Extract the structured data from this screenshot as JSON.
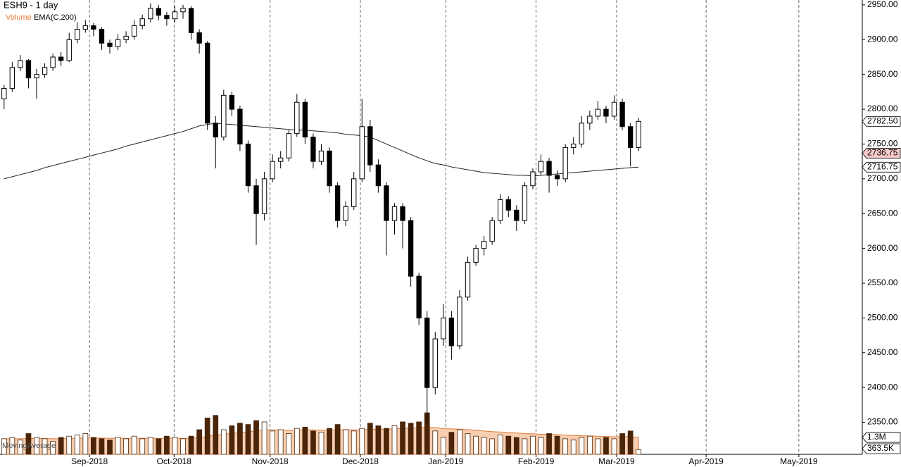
{
  "chart_data": {
    "type": "candlestick",
    "title": "ESH9 - 1 day",
    "legend": [
      "Volume",
      "EMA(C,200)"
    ],
    "legend_colors": [
      "#e07b39",
      "#000000"
    ],
    "footer_label": "MovingAverage",
    "xlim": [
      0,
      106
    ],
    "xticks": [
      {
        "value": 11,
        "label": "Sep-2018"
      },
      {
        "value": 21.4,
        "label": "Oct-2018"
      },
      {
        "value": 33.2,
        "label": "Nov-2018"
      },
      {
        "value": 44.3,
        "label": "Dec-2018"
      },
      {
        "value": 54.8,
        "label": "Jan-2019"
      },
      {
        "value": 65.9,
        "label": "Feb-2019"
      },
      {
        "value": 75.8,
        "label": "Mar-2019"
      },
      {
        "value": 86.8,
        "label": "Apr-2019"
      },
      {
        "value": 98.2,
        "label": "May-2019"
      }
    ],
    "ylim": [
      2304,
      2957
    ],
    "yticks": [
      {
        "value": 2350,
        "label": "2350.00"
      },
      {
        "value": 2400,
        "label": "2400.00"
      },
      {
        "value": 2450,
        "label": "2450.00"
      },
      {
        "value": 2500,
        "label": "2500.00"
      },
      {
        "value": 2550,
        "label": "2550.00"
      },
      {
        "value": 2600,
        "label": "2600.00"
      },
      {
        "value": 2650,
        "label": "2650.00"
      },
      {
        "value": 2700,
        "label": "2700.00"
      },
      {
        "value": 2750,
        "label": "2750.00"
      },
      {
        "value": 2800,
        "label": "2800.00"
      },
      {
        "value": 2850,
        "label": "2850.00"
      },
      {
        "value": 2900,
        "label": "2900.00"
      },
      {
        "value": 2950,
        "label": "2950.00"
      }
    ],
    "price_labels": [
      {
        "value": 2782.5,
        "label": "2782.50"
      },
      {
        "value": 2736.75,
        "label": "2736.75"
      },
      {
        "value": 2716.75,
        "label": "2716.75"
      }
    ],
    "volume_lim": [
      0,
      3800000
    ],
    "volume_labels": [
      {
        "value": 1300000,
        "label": "1.3M"
      },
      {
        "value": 363500,
        "label": "363.5K"
      }
    ],
    "candles": [
      [
        2815,
        2835,
        2800,
        2830
      ],
      [
        2830,
        2868,
        2825,
        2860
      ],
      [
        2860,
        2878,
        2855,
        2870
      ],
      [
        2870,
        2872,
        2830,
        2845
      ],
      [
        2845,
        2858,
        2815,
        2850
      ],
      [
        2850,
        2866,
        2845,
        2860
      ],
      [
        2860,
        2880,
        2855,
        2875
      ],
      [
        2875,
        2882,
        2862,
        2870
      ],
      [
        2870,
        2910,
        2868,
        2900
      ],
      [
        2900,
        2925,
        2895,
        2915
      ],
      [
        2915,
        2928,
        2910,
        2920
      ],
      [
        2920,
        2924,
        2905,
        2915
      ],
      [
        2915,
        2918,
        2885,
        2895
      ],
      [
        2895,
        2900,
        2880,
        2890
      ],
      [
        2890,
        2908,
        2885,
        2900
      ],
      [
        2900,
        2912,
        2895,
        2905
      ],
      [
        2905,
        2928,
        2900,
        2920
      ],
      [
        2920,
        2936,
        2915,
        2930
      ],
      [
        2930,
        2952,
        2925,
        2945
      ],
      [
        2945,
        2950,
        2928,
        2935
      ],
      [
        2935,
        2940,
        2920,
        2930
      ],
      [
        2930,
        2948,
        2925,
        2940
      ],
      [
        2940,
        2950,
        2930,
        2945
      ],
      [
        2945,
        2948,
        2900,
        2910
      ],
      [
        2910,
        2915,
        2880,
        2895
      ],
      [
        2895,
        2898,
        2770,
        2780
      ],
      [
        2780,
        2790,
        2715,
        2760
      ],
      [
        2760,
        2828,
        2755,
        2820
      ],
      [
        2820,
        2825,
        2790,
        2800
      ],
      [
        2800,
        2805,
        2740,
        2750
      ],
      [
        2750,
        2755,
        2680,
        2690
      ],
      [
        2690,
        2700,
        2605,
        2650
      ],
      [
        2650,
        2710,
        2640,
        2700
      ],
      [
        2700,
        2735,
        2695,
        2725
      ],
      [
        2725,
        2740,
        2715,
        2730
      ],
      [
        2730,
        2770,
        2725,
        2765
      ],
      [
        2765,
        2822,
        2760,
        2810
      ],
      [
        2810,
        2815,
        2750,
        2760
      ],
      [
        2760,
        2765,
        2715,
        2725
      ],
      [
        2725,
        2750,
        2720,
        2740
      ],
      [
        2740,
        2745,
        2680,
        2690
      ],
      [
        2690,
        2695,
        2630,
        2640
      ],
      [
        2640,
        2668,
        2632,
        2660
      ],
      [
        2660,
        2710,
        2655,
        2700
      ],
      [
        2700,
        2815,
        2695,
        2775
      ],
      [
        2775,
        2785,
        2710,
        2720
      ],
      [
        2720,
        2728,
        2680,
        2690
      ],
      [
        2690,
        2695,
        2590,
        2640
      ],
      [
        2640,
        2665,
        2620,
        2660
      ],
      [
        2660,
        2665,
        2600,
        2640
      ],
      [
        2640,
        2645,
        2545,
        2560
      ],
      [
        2560,
        2565,
        2490,
        2500
      ],
      [
        2500,
        2510,
        2350,
        2400
      ],
      [
        2400,
        2480,
        2390,
        2470
      ],
      [
        2470,
        2520,
        2460,
        2500
      ],
      [
        2500,
        2510,
        2440,
        2460
      ],
      [
        2460,
        2540,
        2455,
        2530
      ],
      [
        2530,
        2588,
        2525,
        2580
      ],
      [
        2580,
        2605,
        2575,
        2600
      ],
      [
        2600,
        2618,
        2590,
        2610
      ],
      [
        2610,
        2645,
        2605,
        2640
      ],
      [
        2640,
        2678,
        2635,
        2670
      ],
      [
        2670,
        2675,
        2645,
        2655
      ],
      [
        2655,
        2662,
        2625,
        2640
      ],
      [
        2640,
        2695,
        2635,
        2690
      ],
      [
        2690,
        2715,
        2685,
        2710
      ],
      [
        2710,
        2735,
        2705,
        2725
      ],
      [
        2725,
        2730,
        2680,
        2705
      ],
      [
        2705,
        2712,
        2690,
        2700
      ],
      [
        2700,
        2750,
        2695,
        2745
      ],
      [
        2745,
        2760,
        2735,
        2750
      ],
      [
        2750,
        2790,
        2745,
        2780
      ],
      [
        2780,
        2798,
        2770,
        2790
      ],
      [
        2790,
        2812,
        2785,
        2800
      ],
      [
        2800,
        2805,
        2780,
        2790
      ],
      [
        2790,
        2820,
        2785,
        2810
      ],
      [
        2810,
        2815,
        2770,
        2775
      ],
      [
        2775,
        2780,
        2718,
        2745
      ],
      [
        2745,
        2788,
        2740,
        2782.5
      ]
    ],
    "ema": [
      2700,
      2703,
      2706,
      2709,
      2712,
      2716,
      2719,
      2722,
      2725,
      2728,
      2731,
      2734,
      2737,
      2740,
      2743,
      2747,
      2750,
      2753,
      2756,
      2759,
      2762,
      2765,
      2768,
      2772,
      2776,
      2778,
      2780,
      2779,
      2778,
      2777,
      2776,
      2775,
      2774,
      2773,
      2772,
      2771,
      2770,
      2770,
      2769,
      2768,
      2767,
      2766,
      2764,
      2763,
      2762,
      2760,
      2755,
      2750,
      2745,
      2740,
      2735,
      2730,
      2726,
      2722,
      2720,
      2717,
      2715,
      2713,
      2711,
      2709,
      2708,
      2707,
      2706,
      2705,
      2705,
      2704,
      2705,
      2706,
      2707,
      2708,
      2709,
      2710,
      2711,
      2712,
      2713,
      2714,
      2715,
      2716,
      2716.75
    ],
    "volume": [
      1200000,
      1300000,
      1100000,
      1600000,
      1300000,
      1200000,
      1000000,
      1300000,
      1400000,
      1500000,
      1600000,
      1300000,
      1200000,
      1100000,
      1300000,
      1200000,
      1400000,
      1200000,
      1300000,
      1200000,
      1400000,
      1300000,
      1200000,
      1400000,
      1900000,
      2800000,
      3000000,
      1900000,
      2200000,
      2400000,
      2300000,
      2600000,
      2500000,
      1800000,
      1900000,
      1600000,
      2000000,
      2100000,
      1800000,
      1700000,
      2000000,
      2300000,
      1900000,
      1800000,
      2000000,
      2400000,
      2200000,
      2000000,
      2200000,
      2500000,
      2400000,
      2500000,
      3200000,
      1800000,
      1300000,
      1700000,
      1900000,
      1600000,
      1400000,
      1300000,
      1200000,
      1500000,
      1400000,
      1300000,
      1200000,
      1400000,
      1300000,
      1600000,
      1400000,
      1200000,
      1100000,
      1300000,
      1400000,
      1200000,
      1300000,
      1200000,
      1600000,
      1800000,
      363500
    ],
    "volume_ema": [
      1200000,
      1200000,
      1200000,
      1220000,
      1220000,
      1220000,
      1200000,
      1200000,
      1220000,
      1240000,
      1260000,
      1260000,
      1250000,
      1240000,
      1240000,
      1230000,
      1240000,
      1240000,
      1240000,
      1230000,
      1240000,
      1240000,
      1230000,
      1240000,
      1280000,
      1380000,
      1500000,
      1550000,
      1600000,
      1680000,
      1740000,
      1820000,
      1880000,
      1880000,
      1880000,
      1860000,
      1880000,
      1900000,
      1880000,
      1860000,
      1860000,
      1900000,
      1900000,
      1880000,
      1880000,
      1920000,
      1940000,
      1940000,
      1960000,
      2000000,
      2020000,
      2040000,
      2100000,
      2060000,
      1980000,
      1960000,
      1940000,
      1900000,
      1850000,
      1800000,
      1750000,
      1720000,
      1680000,
      1640000,
      1600000,
      1580000,
      1550000,
      1550000,
      1520000,
      1480000,
      1450000,
      1430000,
      1420000,
      1400000,
      1380000,
      1360000,
      1360000,
      1380000,
      1300000
    ]
  }
}
